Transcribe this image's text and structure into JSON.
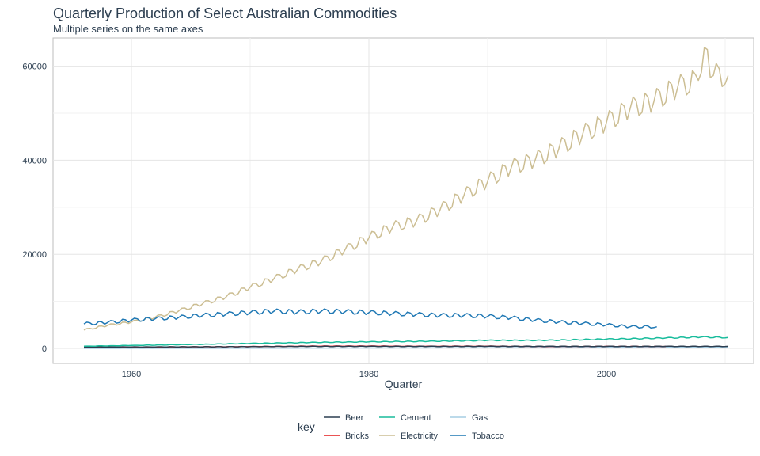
{
  "chart_data": {
    "type": "line",
    "title": "Quarterly Production of Select Australian Commodities",
    "subtitle": "Multiple series on the same axes",
    "xlabel": "Quarter",
    "ylabel": "",
    "xlim": [
      1953.4,
      2012.4
    ],
    "ylim": [
      -3200,
      66000
    ],
    "x_ticks": [
      1960,
      1980,
      2000
    ],
    "y_ticks": [
      0,
      20000,
      40000,
      60000
    ],
    "x_tick_labels": [
      "1960",
      "1980",
      "2000"
    ],
    "y_tick_labels": [
      "0",
      "20000",
      "40000",
      "60000"
    ],
    "grid": true,
    "legend": {
      "title": "key",
      "position": "bottom",
      "entries": [
        "Beer",
        "Bricks",
        "Cement",
        "Electricity",
        "Gas",
        "Tobacco"
      ]
    },
    "series": [
      {
        "name": "Beer",
        "color": "#2c3e50",
        "x": [
          1956.0,
          1960.0,
          1965.0,
          1970.0,
          1975.0,
          1980.0,
          1985.0,
          1990.0,
          1995.0,
          2000.0,
          2005.0,
          2010.25
        ],
        "y": [
          280,
          300,
          320,
          360,
          420,
          430,
          420,
          440,
          430,
          420,
          430,
          430
        ]
      },
      {
        "name": "Bricks",
        "color": "#e31a1c",
        "x": [
          1956.0,
          1960.0,
          1965.0,
          1970.0,
          1975.0,
          1980.0,
          1985.0,
          1990.0,
          1995.0,
          2000.0,
          2005.0
        ],
        "y": [
          190,
          250,
          320,
          380,
          470,
          480,
          450,
          470,
          400,
          430,
          420
        ]
      },
      {
        "name": "Cement",
        "color": "#18bc9c",
        "x": [
          1956.0,
          1960.0,
          1965.0,
          1970.0,
          1975.0,
          1980.0,
          1985.0,
          1990.0,
          1995.0,
          2000.0,
          2005.0,
          2008.0,
          2010.25
        ],
        "y": [
          460,
          620,
          820,
          1050,
          1250,
          1400,
          1500,
          1700,
          1700,
          1950,
          2200,
          2400,
          2300
        ]
      },
      {
        "name": "Electricity",
        "color": "#ccbe93",
        "x": [
          1956.0,
          1958.0,
          1960.0,
          1962.0,
          1964.0,
          1966.0,
          1968.0,
          1970.0,
          1972.0,
          1974.0,
          1976.0,
          1978.0,
          1980.0,
          1982.0,
          1984.0,
          1986.0,
          1988.0,
          1990.0,
          1992.0,
          1994.0,
          1996.0,
          1998.0,
          2000.0,
          2002.0,
          2004.0,
          2006.0,
          2007.75,
          2008.25,
          2009.0,
          2010.25
        ],
        "y": [
          3900,
          4900,
          5600,
          6600,
          8000,
          9500,
          11000,
          13000,
          14800,
          16800,
          18500,
          21000,
          23500,
          25800,
          27000,
          29500,
          32500,
          35500,
          38500,
          40000,
          42500,
          45500,
          48000,
          51000,
          52500,
          55500,
          57000,
          64000,
          58000,
          58000
        ]
      },
      {
        "name": "Gas",
        "color": "#a6cee3",
        "x": [
          1956.0,
          1965.0,
          1970.0,
          1975.0,
          1980.0,
          1985.0,
          1990.0,
          1995.0,
          2000.0,
          2005.0,
          2010.25
        ],
        "y": [
          5,
          10,
          30,
          60,
          80,
          100,
          120,
          150,
          180,
          200,
          220
        ]
      },
      {
        "name": "Tobacco",
        "color": "#1f78b4",
        "x": [
          1956.0,
          1958.0,
          1960.0,
          1962.0,
          1964.0,
          1966.0,
          1968.0,
          1970.0,
          1972.0,
          1974.0,
          1976.0,
          1978.0,
          1980.0,
          1982.0,
          1984.0,
          1986.0,
          1988.0,
          1990.0,
          1992.0,
          1994.0,
          1996.0,
          1998.0,
          2000.0,
          2002.0,
          2004.25
        ],
        "y": [
          5200,
          5500,
          6000,
          6300,
          6600,
          7000,
          7300,
          7600,
          7900,
          7700,
          7900,
          7800,
          7600,
          7400,
          7200,
          7000,
          7000,
          6800,
          6500,
          6000,
          5600,
          5300,
          5000,
          4600,
          4600
        ]
      }
    ]
  }
}
